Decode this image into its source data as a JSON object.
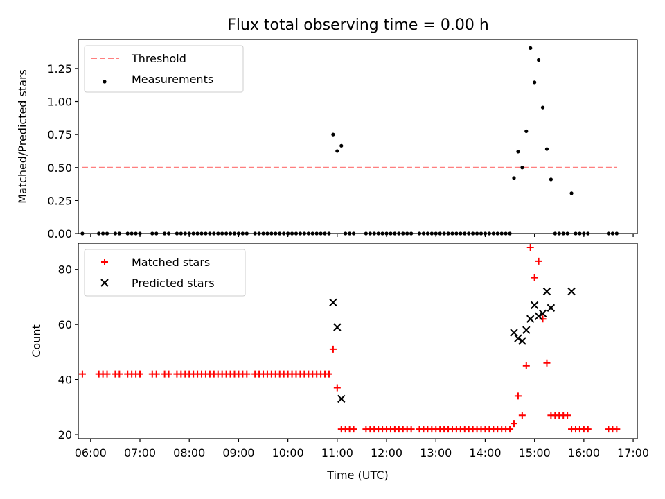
{
  "title": "Flux total observing time = 0.00 h",
  "colors": {
    "threshold": "#ff7f7f",
    "measurement": "#000000",
    "matched": "#ff0000",
    "predicted": "#000000",
    "frame": "#000000",
    "background": "#ffffff"
  },
  "chart_data": [
    {
      "type": "scatter",
      "title": "Flux total observing time = 0.00 h",
      "xlabel": "",
      "ylabel": "Matched/Predicted stars",
      "xlim": [
        "05:45",
        "17:05"
      ],
      "ylim": [
        0,
        1.47
      ],
      "yticks": [
        0.0,
        0.25,
        0.5,
        0.75,
        1.0,
        1.25
      ],
      "ytick_labels": [
        "0.00",
        "0.25",
        "0.50",
        "0.75",
        "1.00",
        "1.25"
      ],
      "legend_position": "upper-left",
      "legend": [
        "Threshold",
        "Measurements"
      ],
      "threshold": {
        "name": "Threshold",
        "y": 0.5,
        "x_start": "05:50",
        "x_end": "16:40",
        "style": "dashed"
      },
      "series": [
        {
          "name": "Measurements",
          "marker": "dot",
          "points": [
            [
              "05:50",
              0
            ],
            [
              "06:10",
              0
            ],
            [
              "06:15",
              0
            ],
            [
              "06:20",
              0
            ],
            [
              "06:30",
              0
            ],
            [
              "06:35",
              0
            ],
            [
              "06:45",
              0
            ],
            [
              "06:50",
              0
            ],
            [
              "06:55",
              0
            ],
            [
              "07:00",
              0
            ],
            [
              "07:15",
              0
            ],
            [
              "07:20",
              0
            ],
            [
              "07:30",
              0
            ],
            [
              "07:35",
              0
            ],
            [
              "07:45",
              0
            ],
            [
              "07:50",
              0
            ],
            [
              "07:55",
              0
            ],
            [
              "08:00",
              0
            ],
            [
              "08:05",
              0
            ],
            [
              "08:10",
              0
            ],
            [
              "08:15",
              0
            ],
            [
              "08:20",
              0
            ],
            [
              "08:25",
              0
            ],
            [
              "08:30",
              0
            ],
            [
              "08:35",
              0
            ],
            [
              "08:40",
              0
            ],
            [
              "08:45",
              0
            ],
            [
              "08:50",
              0
            ],
            [
              "08:55",
              0
            ],
            [
              "09:00",
              0
            ],
            [
              "09:05",
              0
            ],
            [
              "09:10",
              0
            ],
            [
              "09:20",
              0
            ],
            [
              "09:25",
              0
            ],
            [
              "09:30",
              0
            ],
            [
              "09:35",
              0
            ],
            [
              "09:40",
              0
            ],
            [
              "09:45",
              0
            ],
            [
              "09:50",
              0
            ],
            [
              "09:55",
              0
            ],
            [
              "10:00",
              0
            ],
            [
              "10:05",
              0
            ],
            [
              "10:10",
              0
            ],
            [
              "10:15",
              0
            ],
            [
              "10:20",
              0
            ],
            [
              "10:25",
              0
            ],
            [
              "10:30",
              0
            ],
            [
              "10:35",
              0
            ],
            [
              "10:40",
              0
            ],
            [
              "10:45",
              0
            ],
            [
              "10:50",
              0
            ],
            [
              "10:55",
              0.75
            ],
            [
              "11:00",
              0.625
            ],
            [
              "11:05",
              0.665
            ],
            [
              "11:10",
              0
            ],
            [
              "11:15",
              0
            ],
            [
              "11:20",
              0
            ],
            [
              "11:35",
              0
            ],
            [
              "11:40",
              0
            ],
            [
              "11:45",
              0
            ],
            [
              "11:50",
              0
            ],
            [
              "11:55",
              0
            ],
            [
              "12:00",
              0
            ],
            [
              "12:05",
              0
            ],
            [
              "12:10",
              0
            ],
            [
              "12:15",
              0
            ],
            [
              "12:20",
              0
            ],
            [
              "12:25",
              0
            ],
            [
              "12:30",
              0
            ],
            [
              "12:40",
              0
            ],
            [
              "12:45",
              0
            ],
            [
              "12:50",
              0
            ],
            [
              "12:55",
              0
            ],
            [
              "13:00",
              0
            ],
            [
              "13:05",
              0
            ],
            [
              "13:10",
              0
            ],
            [
              "13:15",
              0
            ],
            [
              "13:20",
              0
            ],
            [
              "13:25",
              0
            ],
            [
              "13:30",
              0
            ],
            [
              "13:35",
              0
            ],
            [
              "13:40",
              0
            ],
            [
              "13:45",
              0
            ],
            [
              "13:50",
              0
            ],
            [
              "13:55",
              0
            ],
            [
              "14:00",
              0
            ],
            [
              "14:05",
              0
            ],
            [
              "14:10",
              0
            ],
            [
              "14:15",
              0
            ],
            [
              "14:20",
              0
            ],
            [
              "14:25",
              0
            ],
            [
              "14:30",
              0
            ],
            [
              "14:35",
              0.42
            ],
            [
              "14:40",
              0.62
            ],
            [
              "14:45",
              0.5
            ],
            [
              "14:50",
              0.775
            ],
            [
              "14:55",
              1.405
            ],
            [
              "15:00",
              1.145
            ],
            [
              "15:05",
              1.315
            ],
            [
              "15:10",
              0.955
            ],
            [
              "15:15",
              0.64
            ],
            [
              "15:20",
              0.41
            ],
            [
              "15:25",
              0
            ],
            [
              "15:30",
              0
            ],
            [
              "15:35",
              0
            ],
            [
              "15:40",
              0
            ],
            [
              "15:45",
              0.305
            ],
            [
              "15:50",
              0
            ],
            [
              "15:55",
              0
            ],
            [
              "16:00",
              0
            ],
            [
              "16:05",
              0
            ],
            [
              "16:30",
              0
            ],
            [
              "16:35",
              0
            ],
            [
              "16:40",
              0
            ]
          ]
        }
      ]
    },
    {
      "type": "scatter",
      "title": "",
      "xlabel": "Time (UTC)",
      "ylabel": "Count",
      "xlim": [
        "05:45",
        "17:05"
      ],
      "ylim": [
        18.5,
        89.5
      ],
      "xticks": [
        "06:00",
        "07:00",
        "08:00",
        "09:00",
        "10:00",
        "11:00",
        "12:00",
        "13:00",
        "14:00",
        "15:00",
        "16:00",
        "17:00"
      ],
      "yticks": [
        20,
        40,
        60,
        80
      ],
      "ytick_labels": [
        "20",
        "40",
        "60",
        "80"
      ],
      "legend_position": "upper-left",
      "legend": [
        "Matched stars",
        "Predicted stars"
      ],
      "series": [
        {
          "name": "Matched stars",
          "marker": "plus",
          "points": [
            [
              "05:50",
              42
            ],
            [
              "06:10",
              42
            ],
            [
              "06:15",
              42
            ],
            [
              "06:20",
              42
            ],
            [
              "06:30",
              42
            ],
            [
              "06:35",
              42
            ],
            [
              "06:45",
              42
            ],
            [
              "06:50",
              42
            ],
            [
              "06:55",
              42
            ],
            [
              "07:00",
              42
            ],
            [
              "07:15",
              42
            ],
            [
              "07:20",
              42
            ],
            [
              "07:30",
              42
            ],
            [
              "07:35",
              42
            ],
            [
              "07:45",
              42
            ],
            [
              "07:50",
              42
            ],
            [
              "07:55",
              42
            ],
            [
              "08:00",
              42
            ],
            [
              "08:05",
              42
            ],
            [
              "08:10",
              42
            ],
            [
              "08:15",
              42
            ],
            [
              "08:20",
              42
            ],
            [
              "08:25",
              42
            ],
            [
              "08:30",
              42
            ],
            [
              "08:35",
              42
            ],
            [
              "08:40",
              42
            ],
            [
              "08:45",
              42
            ],
            [
              "08:50",
              42
            ],
            [
              "08:55",
              42
            ],
            [
              "09:00",
              42
            ],
            [
              "09:05",
              42
            ],
            [
              "09:10",
              42
            ],
            [
              "09:20",
              42
            ],
            [
              "09:25",
              42
            ],
            [
              "09:30",
              42
            ],
            [
              "09:35",
              42
            ],
            [
              "09:40",
              42
            ],
            [
              "09:45",
              42
            ],
            [
              "09:50",
              42
            ],
            [
              "09:55",
              42
            ],
            [
              "10:00",
              42
            ],
            [
              "10:05",
              42
            ],
            [
              "10:10",
              42
            ],
            [
              "10:15",
              42
            ],
            [
              "10:20",
              42
            ],
            [
              "10:25",
              42
            ],
            [
              "10:30",
              42
            ],
            [
              "10:35",
              42
            ],
            [
              "10:40",
              42
            ],
            [
              "10:45",
              42
            ],
            [
              "10:50",
              42
            ],
            [
              "10:55",
              51
            ],
            [
              "11:00",
              37
            ],
            [
              "11:05",
              22
            ],
            [
              "11:10",
              22
            ],
            [
              "11:15",
              22
            ],
            [
              "11:20",
              22
            ],
            [
              "11:35",
              22
            ],
            [
              "11:40",
              22
            ],
            [
              "11:45",
              22
            ],
            [
              "11:50",
              22
            ],
            [
              "11:55",
              22
            ],
            [
              "12:00",
              22
            ],
            [
              "12:05",
              22
            ],
            [
              "12:10",
              22
            ],
            [
              "12:15",
              22
            ],
            [
              "12:20",
              22
            ],
            [
              "12:25",
              22
            ],
            [
              "12:30",
              22
            ],
            [
              "12:40",
              22
            ],
            [
              "12:45",
              22
            ],
            [
              "12:50",
              22
            ],
            [
              "12:55",
              22
            ],
            [
              "13:00",
              22
            ],
            [
              "13:05",
              22
            ],
            [
              "13:10",
              22
            ],
            [
              "13:15",
              22
            ],
            [
              "13:20",
              22
            ],
            [
              "13:25",
              22
            ],
            [
              "13:30",
              22
            ],
            [
              "13:35",
              22
            ],
            [
              "13:40",
              22
            ],
            [
              "13:45",
              22
            ],
            [
              "13:50",
              22
            ],
            [
              "13:55",
              22
            ],
            [
              "14:00",
              22
            ],
            [
              "14:05",
              22
            ],
            [
              "14:10",
              22
            ],
            [
              "14:15",
              22
            ],
            [
              "14:20",
              22
            ],
            [
              "14:25",
              22
            ],
            [
              "14:30",
              22
            ],
            [
              "14:35",
              24
            ],
            [
              "14:40",
              34
            ],
            [
              "14:45",
              27
            ],
            [
              "14:50",
              45
            ],
            [
              "14:55",
              88
            ],
            [
              "15:00",
              77
            ],
            [
              "15:05",
              83
            ],
            [
              "15:10",
              62
            ],
            [
              "15:15",
              46
            ],
            [
              "15:20",
              27
            ],
            [
              "15:25",
              27
            ],
            [
              "15:30",
              27
            ],
            [
              "15:35",
              27
            ],
            [
              "15:40",
              27
            ],
            [
              "15:45",
              22
            ],
            [
              "15:50",
              22
            ],
            [
              "15:55",
              22
            ],
            [
              "16:00",
              22
            ],
            [
              "16:05",
              22
            ],
            [
              "16:30",
              22
            ],
            [
              "16:35",
              22
            ],
            [
              "16:40",
              22
            ]
          ]
        },
        {
          "name": "Predicted stars",
          "marker": "x",
          "points": [
            [
              "10:55",
              68
            ],
            [
              "11:00",
              59
            ],
            [
              "11:05",
              33
            ],
            [
              "14:35",
              57
            ],
            [
              "14:40",
              55
            ],
            [
              "14:45",
              54
            ],
            [
              "14:50",
              58
            ],
            [
              "14:55",
              62
            ],
            [
              "15:00",
              67
            ],
            [
              "15:05",
              63
            ],
            [
              "15:10",
              64
            ],
            [
              "15:15",
              72
            ],
            [
              "15:20",
              66
            ],
            [
              "15:45",
              72
            ]
          ]
        }
      ]
    }
  ]
}
